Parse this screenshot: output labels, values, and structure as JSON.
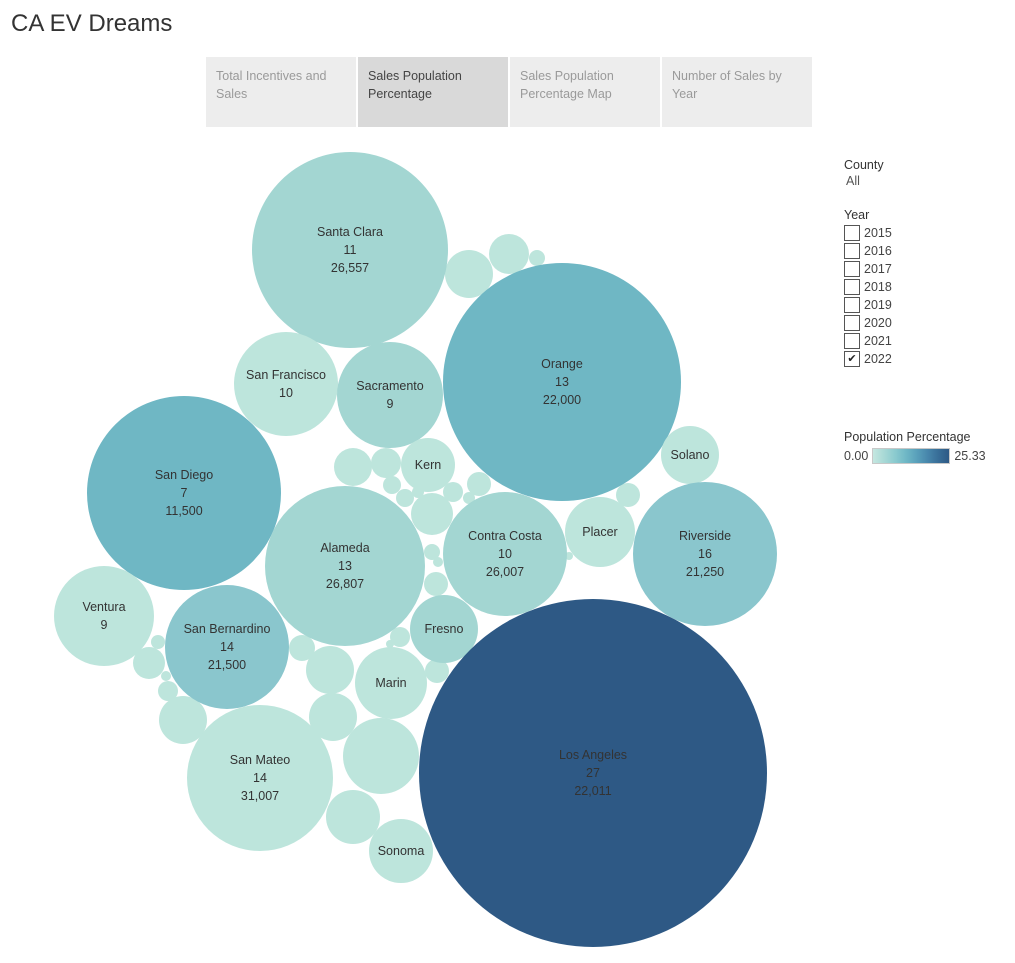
{
  "title": "CA EV Dreams",
  "tabs": [
    {
      "label": "Total Incentives and Sales"
    },
    {
      "label": "Sales Population Percentage"
    },
    {
      "label": "Sales Population Percentage Map"
    },
    {
      "label": "Number of Sales by Year"
    }
  ],
  "filters": {
    "county_title": "County",
    "county_value": "All",
    "year_title": "Year",
    "years": [
      {
        "label": "2015",
        "checked": false
      },
      {
        "label": "2016",
        "checked": false
      },
      {
        "label": "2017",
        "checked": false
      },
      {
        "label": "2018",
        "checked": false
      },
      {
        "label": "2019",
        "checked": false
      },
      {
        "label": "2020",
        "checked": false
      },
      {
        "label": "2021",
        "checked": false
      },
      {
        "label": "2022",
        "checked": true
      }
    ]
  },
  "legend": {
    "title": "Population Percentage",
    "min": "0.00",
    "max": "25.33"
  },
  "chart_data": {
    "type": "packed-bubble",
    "color_scale": {
      "min": 0.0,
      "max": 25.33,
      "from": "#c5e7e0",
      "to": "#2e5985"
    },
    "bubbles": [
      {
        "county": "Santa Clara",
        "pct": "11",
        "sales": "26,557",
        "color": "#a3d6d2"
      },
      {
        "county": "Orange",
        "pct": "13",
        "sales": "22,000",
        "color": "#6fb7c4"
      },
      {
        "county": "San Francisco",
        "pct": "10",
        "sales": "",
        "color": "#bde5dc"
      },
      {
        "county": "Sacramento",
        "pct": "9",
        "sales": "",
        "color": "#a3d6d2"
      },
      {
        "county": "San Diego",
        "pct": "7",
        "sales": "11,500",
        "color": "#6fb7c4"
      },
      {
        "county": "Kern",
        "pct": "",
        "sales": "",
        "color": "#bde5dc"
      },
      {
        "county": "Solano",
        "pct": "",
        "sales": "",
        "color": "#bde5dc"
      },
      {
        "county": "Alameda",
        "pct": "13",
        "sales": "26,807",
        "color": "#a3d6d2"
      },
      {
        "county": "Contra Costa",
        "pct": "10",
        "sales": "26,007",
        "color": "#a3d6d2"
      },
      {
        "county": "Placer",
        "pct": "",
        "sales": "",
        "color": "#bde5dc"
      },
      {
        "county": "Riverside",
        "pct": "16",
        "sales": "21,250",
        "color": "#8ac6cd"
      },
      {
        "county": "Ventura",
        "pct": "9",
        "sales": "",
        "color": "#bde5dc"
      },
      {
        "county": "San Bernardino",
        "pct": "14",
        "sales": "21,500",
        "color": "#8ac6cd"
      },
      {
        "county": "Fresno",
        "pct": "",
        "sales": "",
        "color": "#a3d6d2"
      },
      {
        "county": "Marin",
        "pct": "",
        "sales": "",
        "color": "#bde5dc"
      },
      {
        "county": "Los Angeles",
        "pct": "27",
        "sales": "22,011",
        "color": "#2e5985"
      },
      {
        "county": "San Mateo",
        "pct": "14",
        "sales": "31,007",
        "color": "#bde5dc"
      },
      {
        "county": "Sonoma",
        "pct": "",
        "sales": "",
        "color": "#bde5dc"
      }
    ],
    "unlabeled_bubble_color": "#bde5dc"
  }
}
